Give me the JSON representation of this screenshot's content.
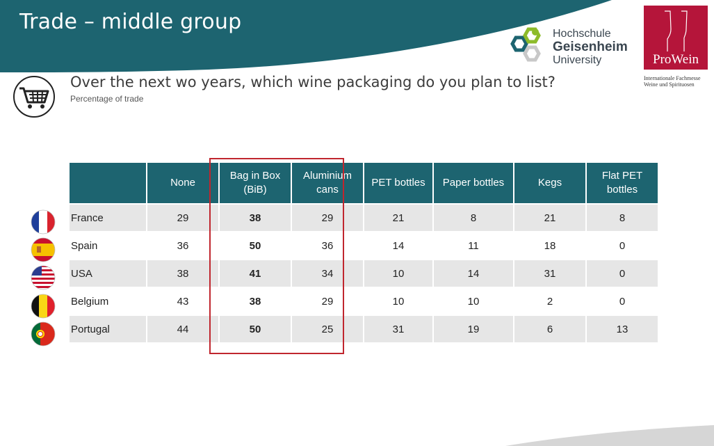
{
  "header": {
    "title": "Trade – middle group",
    "band_color": "#1d6470",
    "university_logo": {
      "line1": "Hochschule",
      "line2": "Geisenheim",
      "line3": "University"
    },
    "prowein_logo": {
      "name": "ProWein",
      "tagline": "Internationale Fachmesse Weine und Spirituosen",
      "color": "#b5153a"
    }
  },
  "question": {
    "icon": "shopping-cart-icon",
    "text": "Over the next wo years, which wine packaging do you plan to list?",
    "subtitle": "Percentage of trade"
  },
  "table": {
    "columns": [
      "",
      "None",
      "Bag in Box\n(BiB)",
      "Aluminium\ncans",
      "PET bottles",
      "Paper bottles",
      "Kegs",
      "Flat PET\nbottles"
    ],
    "highlighted_columns": [
      "Bag in Box (BiB)",
      "Aluminium cans"
    ],
    "highlight_color": "#c0262e",
    "rows": [
      {
        "country": "France",
        "flag": "france-flag-icon",
        "values": [
          "29",
          "38",
          "29",
          "21",
          "8",
          "21",
          "8"
        ]
      },
      {
        "country": "Spain",
        "flag": "spain-flag-icon",
        "values": [
          "36",
          "50",
          "36",
          "14",
          "11",
          "18",
          "0"
        ]
      },
      {
        "country": "USA",
        "flag": "usa-flag-icon",
        "values": [
          "38",
          "41",
          "34",
          "10",
          "14",
          "31",
          "0"
        ]
      },
      {
        "country": "Belgium",
        "flag": "belgium-flag-icon",
        "values": [
          "43",
          "38",
          "29",
          "10",
          "10",
          "2",
          "0"
        ]
      },
      {
        "country": "Portugal",
        "flag": "portugal-flag-icon",
        "values": [
          "44",
          "50",
          "25",
          "31",
          "19",
          "6",
          "13"
        ]
      }
    ]
  }
}
